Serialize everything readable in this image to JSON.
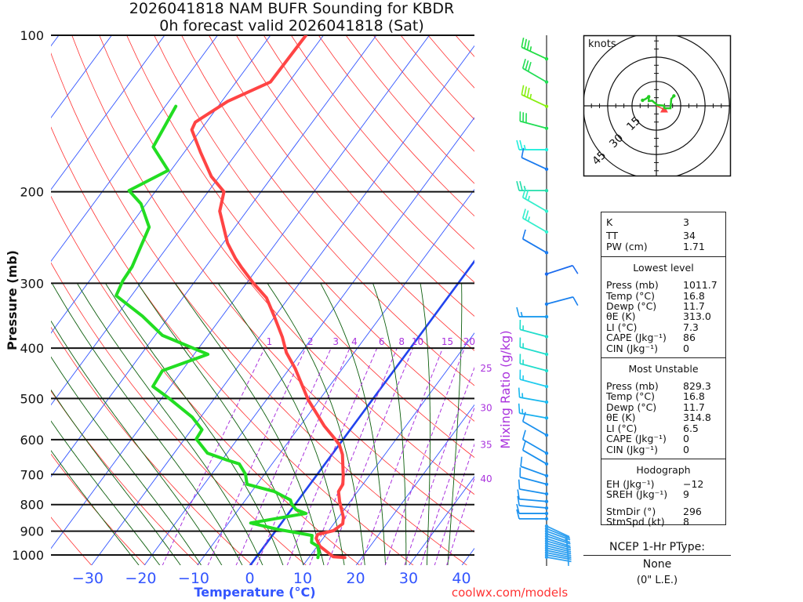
{
  "title": {
    "line1": "2026041818 NAM BUFR Sounding for KBDR",
    "line2": "0h forecast valid 2026041818 (Sat)"
  },
  "chart_data": {
    "type": "line",
    "title": "2026041818 NAM BUFR Sounding for KBDR / 0h forecast valid 2026041818 (Sat)",
    "xlabel": "Temperature (°C)",
    "ylabel": "Pressure (mb)",
    "x_ticks": [
      -30,
      -20,
      -10,
      0,
      10,
      20,
      30,
      40
    ],
    "y_ticks": [
      100,
      200,
      300,
      400,
      500,
      600,
      700,
      800,
      900,
      1000
    ],
    "ylim": [
      1050,
      100
    ],
    "xlim_at_bottom": [
      -38,
      42
    ],
    "mixing_ratio_label": "Mixing Ratio (g/kg)",
    "mixing_ratio_lines": [
      1,
      2,
      3,
      4,
      6,
      8,
      10,
      15,
      20,
      25,
      30,
      35,
      40
    ],
    "series": [
      {
        "name": "Temperature",
        "color": "#ff4444",
        "points": [
          [
            1011.7,
            16.8
          ],
          [
            1008,
            14.5
          ],
          [
            962,
            10.5
          ],
          [
            929,
            8.7
          ],
          [
            913,
            8.4
          ],
          [
            898,
            10.9
          ],
          [
            871,
            11.7
          ],
          [
            846,
            10.9
          ],
          [
            789,
            8.0
          ],
          [
            755,
            6.4
          ],
          [
            731,
            6.2
          ],
          [
            704,
            5.1
          ],
          [
            641,
            2.0
          ],
          [
            613,
            0.0
          ],
          [
            598,
            -1.6
          ],
          [
            564,
            -5.5
          ],
          [
            503,
            -12.1
          ],
          [
            438,
            -18.9
          ],
          [
            408,
            -22.8
          ],
          [
            381,
            -25.7
          ],
          [
            347,
            -30.2
          ],
          [
            320,
            -34.2
          ],
          [
            299,
            -38.9
          ],
          [
            279,
            -43.3
          ],
          [
            269,
            -45.5
          ],
          [
            251,
            -49.2
          ],
          [
            218,
            -55.1
          ],
          [
            200,
            -57.0
          ],
          [
            187,
            -61.5
          ],
          [
            168,
            -66.9
          ],
          [
            152,
            -71.7
          ],
          [
            147,
            -72.1
          ],
          [
            134,
            -68.9
          ],
          [
            123,
            -63.5
          ],
          [
            100,
            -63.3
          ]
        ]
      },
      {
        "name": "Dewpoint",
        "color": "#22dd22",
        "points": [
          [
            1011.7,
            11.7
          ],
          [
            990,
            11.2
          ],
          [
            962,
            10.1
          ],
          [
            946,
            8.4
          ],
          [
            917,
            7.5
          ],
          [
            892,
            0.0
          ],
          [
            868,
            -5.8
          ],
          [
            832,
            3.3
          ],
          [
            818,
            0.9
          ],
          [
            798,
            -0.7
          ],
          [
            784,
            -1.5
          ],
          [
            755,
            -5.7
          ],
          [
            731,
            -11.9
          ],
          [
            699,
            -13.6
          ],
          [
            668,
            -16.2
          ],
          [
            657,
            -19.0
          ],
          [
            637,
            -23.7
          ],
          [
            598,
            -27.8
          ],
          [
            574,
            -28.0
          ],
          [
            543,
            -31.6
          ],
          [
            499,
            -38.7
          ],
          [
            474,
            -43.3
          ],
          [
            442,
            -43.7
          ],
          [
            411,
            -37.4
          ],
          [
            378,
            -48.6
          ],
          [
            347,
            -55.1
          ],
          [
            317,
            -62.9
          ],
          [
            297,
            -63.7
          ],
          [
            279,
            -63.9
          ],
          [
            234,
            -66.2
          ],
          [
            211,
            -71.0
          ],
          [
            199,
            -75.1
          ],
          [
            182,
            -70.5
          ],
          [
            164,
            -76.6
          ],
          [
            137,
            -78.0
          ]
        ]
      }
    ],
    "winds": [
      {
        "p": 111,
        "dir": 295,
        "spd": 35,
        "color": "#22dd44"
      },
      {
        "p": 123,
        "dir": 300,
        "spd": 30,
        "color": "#22dd55"
      },
      {
        "p": 137,
        "dir": 295,
        "spd": 35,
        "color": "#88ee11"
      },
      {
        "p": 151,
        "dir": 285,
        "spd": 30,
        "color": "#22dd55"
      },
      {
        "p": 166,
        "dir": 270,
        "spd": 25,
        "color": "#22eedd"
      },
      {
        "p": 181,
        "dir": 295,
        "spd": 10,
        "color": "#1a7aee"
      },
      {
        "p": 199,
        "dir": 270,
        "spd": 25,
        "color": "#22ddaa"
      },
      {
        "p": 218,
        "dir": 300,
        "spd": 25,
        "color": "#33eecc"
      },
      {
        "p": 239,
        "dir": 300,
        "spd": 25,
        "color": "#33eecc"
      },
      {
        "p": 262,
        "dir": 300,
        "spd": 10,
        "color": "#1a7aee"
      },
      {
        "p": 288,
        "dir": 72,
        "spd": 10,
        "color": "#1a6aee"
      },
      {
        "p": 329,
        "dir": 75,
        "spd": 10,
        "color": "#1a80ee"
      },
      {
        "p": 348,
        "dir": 270,
        "spd": 15,
        "color": "#1a9aee"
      },
      {
        "p": 380,
        "dir": 285,
        "spd": 15,
        "color": "#22ddcc"
      },
      {
        "p": 411,
        "dir": 285,
        "spd": 15,
        "color": "#22ddcc"
      },
      {
        "p": 442,
        "dir": 285,
        "spd": 15,
        "color": "#22ddcc"
      },
      {
        "p": 474,
        "dir": 285,
        "spd": 15,
        "color": "#22ccee"
      },
      {
        "p": 508,
        "dir": 280,
        "spd": 15,
        "color": "#1ab8ee"
      },
      {
        "p": 545,
        "dir": 280,
        "spd": 15,
        "color": "#1ab0ee"
      },
      {
        "p": 588,
        "dir": 300,
        "spd": 10,
        "color": "#1a90ee"
      },
      {
        "p": 637,
        "dir": 300,
        "spd": 10,
        "color": "#1a90ee"
      },
      {
        "p": 668,
        "dir": 300,
        "spd": 10,
        "color": "#1a90ee"
      },
      {
        "p": 704,
        "dir": 290,
        "spd": 10,
        "color": "#1a90ee"
      },
      {
        "p": 731,
        "dir": 285,
        "spd": 10,
        "color": "#1a90ee"
      },
      {
        "p": 763,
        "dir": 280,
        "spd": 10,
        "color": "#1a90ee"
      },
      {
        "p": 789,
        "dir": 275,
        "spd": 10,
        "color": "#1a90ee"
      },
      {
        "p": 812,
        "dir": 275,
        "spd": 10,
        "color": "#1a90ee"
      },
      {
        "p": 832,
        "dir": 270,
        "spd": 10,
        "color": "#1a90ee"
      },
      {
        "p": 852,
        "dir": 270,
        "spd": 10,
        "color": "#1a90ee"
      },
      {
        "p": 880,
        "dir": 115,
        "spd": 5,
        "color": "#30a0f0"
      },
      {
        "p": 890,
        "dir": 112,
        "spd": 5,
        "color": "#30a0f0"
      },
      {
        "p": 900,
        "dir": 110,
        "spd": 5,
        "color": "#30a0f0"
      },
      {
        "p": 910,
        "dir": 110,
        "spd": 5,
        "color": "#30a0f0"
      },
      {
        "p": 920,
        "dir": 108,
        "spd": 5,
        "color": "#30a0f0"
      },
      {
        "p": 930,
        "dir": 108,
        "spd": 5,
        "color": "#30a0f0"
      },
      {
        "p": 940,
        "dir": 106,
        "spd": 5,
        "color": "#30a0f0"
      },
      {
        "p": 950,
        "dir": 105,
        "spd": 5,
        "color": "#30a0f0"
      },
      {
        "p": 960,
        "dir": 104,
        "spd": 5,
        "color": "#30a0f0"
      },
      {
        "p": 970,
        "dir": 103,
        "spd": 5,
        "color": "#30a0f0"
      },
      {
        "p": 980,
        "dir": 102,
        "spd": 5,
        "color": "#30a0f0"
      },
      {
        "p": 990,
        "dir": 101,
        "spd": 5,
        "color": "#30a0f0"
      },
      {
        "p": 1000,
        "dir": 100,
        "spd": 5,
        "color": "#30a0f0"
      },
      {
        "p": 1010,
        "dir": 100,
        "spd": 5,
        "color": "#30a0f0"
      }
    ],
    "hodograph": {
      "units_label": "knots",
      "rings": [
        15,
        30,
        45
      ],
      "trace_color": "#22cc22",
      "trace": [
        [
          -8.5,
          3.4
        ],
        [
          -6.6,
          4.2
        ],
        [
          -4.7,
          5.6
        ],
        [
          -4.7,
          2.9
        ],
        [
          -2.6,
          3.2
        ],
        [
          0.6,
          0.5
        ],
        [
          4.7,
          0.1
        ],
        [
          5.0,
          -1.5
        ],
        [
          8.7,
          -1.5
        ],
        [
          9.2,
          4.2
        ],
        [
          10.8,
          6.1
        ]
      ],
      "storm_motion": [
        4.8,
        -2.2
      ],
      "storm_color": "#ff4444"
    }
  },
  "stats": {
    "top": [
      {
        "label": "K",
        "value": "3"
      },
      {
        "label": "TT",
        "value": "34"
      },
      {
        "label": "PW (cm)",
        "value": "1.71"
      }
    ],
    "lowest": {
      "header": "Lowest level",
      "rows": [
        {
          "label": "Press (mb)",
          "value": "1011.7"
        },
        {
          "label": "Temp (°C)",
          "value": "16.8"
        },
        {
          "label": "Dewp (°C)",
          "value": "11.7"
        },
        {
          "label": "θE (K)",
          "value": "313.0"
        },
        {
          "label": "LI (°C)",
          "value": "7.3"
        },
        {
          "label": "CAPE (Jkg⁻¹)",
          "value": "86"
        },
        {
          "label": "CIN (Jkg⁻¹)",
          "value": "0"
        }
      ]
    },
    "most_unstable": {
      "header": "Most Unstable",
      "rows": [
        {
          "label": "Press (mb)",
          "value": "829.3"
        },
        {
          "label": "Temp (°C)",
          "value": "16.8"
        },
        {
          "label": "Dewp (°C)",
          "value": "11.7"
        },
        {
          "label": "θE (K)",
          "value": "314.8"
        },
        {
          "label": "LI (°C)",
          "value": "6.5"
        },
        {
          "label": "CAPE (Jkg⁻¹)",
          "value": "0"
        },
        {
          "label": "CIN (Jkg⁻¹)",
          "value": "0"
        }
      ]
    },
    "hodograph": {
      "header": "Hodograph",
      "rows": [
        {
          "label": "EH (Jkg⁻¹)",
          "value": "−12"
        },
        {
          "label": "SREH (Jkg⁻¹)",
          "value": "9"
        }
      ],
      "rows2": [
        {
          "label": "StmDir (°)",
          "value": "296"
        },
        {
          "label": "StmSpd (kt)",
          "value": "8"
        }
      ]
    }
  },
  "ptype": {
    "header": "NCEP 1-Hr PType:",
    "value": "None",
    "note": "(0\" L.E.)"
  },
  "credit": "coolwx.com/models",
  "colors": {
    "isotherm": "#3355ff",
    "dry_adiabat": "#ff3333",
    "moist_adiabat": "#0d5e0d",
    "mixing_ratio": "#aa33dd",
    "axis_label": "#3355ff",
    "credit": "#ff3333"
  }
}
